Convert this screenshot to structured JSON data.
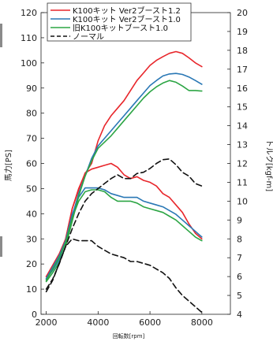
{
  "chart_data": {
    "type": "line",
    "xlabel": "回転数[rpm]",
    "ylabel_left": "馬力[PS]",
    "ylabel_right": "トルク[kgf-m]",
    "xlim": [
      1800,
      9100
    ],
    "ylim_left": [
      0,
      120
    ],
    "ylim_right": [
      4,
      20
    ],
    "x_ticks": [
      2000,
      4000,
      6000,
      8000
    ],
    "y_ticks_left": [
      0,
      10,
      20,
      30,
      40,
      50,
      60,
      70,
      80,
      90,
      100,
      110,
      120
    ],
    "y_ticks_right": [
      4,
      5,
      6,
      7,
      8,
      9,
      10,
      11,
      12,
      13,
      14,
      15,
      16,
      17,
      18,
      19,
      20
    ],
    "grid": false,
    "legend_position": "top-left",
    "series": [
      {
        "name": "K100キット Ver2ブースト1.2",
        "color": "#e8262b",
        "dash": "solid",
        "power_ps": {
          "x": [
            2000,
            2250,
            2500,
            2750,
            3000,
            3250,
            3500,
            3750,
            4000,
            4250,
            4500,
            4750,
            5000,
            5250,
            5500,
            5750,
            6000,
            6250,
            6500,
            6750,
            7000,
            7250,
            7500,
            7750,
            8000
          ],
          "y": [
            15,
            18.5,
            22.5,
            30,
            42,
            50,
            56,
            60,
            69,
            75,
            79,
            82,
            85,
            89,
            93,
            96,
            99,
            101,
            102.5,
            103.8,
            104.5,
            103.8,
            102,
            100,
            98.5
          ]
        },
        "torque_kgfm": {
          "x": [
            2000,
            2250,
            2500,
            2750,
            3000,
            3250,
            3500,
            3750,
            4000,
            4250,
            4500,
            4750,
            5000,
            5250,
            5500,
            5750,
            6000,
            6250,
            6500,
            6750,
            7000,
            7250,
            7500,
            7750,
            8000
          ],
          "y": [
            6.0,
            6.6,
            7.2,
            8.0,
            9.6,
            10.6,
            11.5,
            11.7,
            11.8,
            11.9,
            12.0,
            11.8,
            11.4,
            11.2,
            11.3,
            11.1,
            11.0,
            10.8,
            10.4,
            10.2,
            9.8,
            9.4,
            8.8,
            8.3,
            8.0
          ]
        }
      },
      {
        "name": "K100キット Ver2ブースト1.0",
        "color": "#2a78b5",
        "dash": "solid",
        "power_ps": {
          "x": [
            2000,
            2250,
            2500,
            2750,
            3000,
            3250,
            3500,
            3750,
            4000,
            4250,
            4500,
            4750,
            5000,
            5250,
            5500,
            5750,
            6000,
            6250,
            6500,
            6750,
            7000,
            7250,
            7500,
            7750,
            8000
          ],
          "y": [
            14,
            17.5,
            21.5,
            29,
            39,
            48,
            55,
            62,
            67,
            70,
            73,
            76,
            79,
            82,
            85,
            88,
            91,
            93,
            94.8,
            95.6,
            95.8,
            95.4,
            94.4,
            93,
            91.5
          ]
        },
        "torque_kgfm": {
          "x": [
            2000,
            2250,
            2500,
            2750,
            3000,
            3250,
            3500,
            3750,
            4000,
            4250,
            4500,
            4750,
            5000,
            5250,
            5500,
            5750,
            6000,
            6250,
            6500,
            6750,
            7000,
            7250,
            7500,
            7750,
            8000
          ],
          "y": [
            5.9,
            6.5,
            7.1,
            7.9,
            9.3,
            10.2,
            10.7,
            10.7,
            10.7,
            10.6,
            10.4,
            10.3,
            10.2,
            10.2,
            10.2,
            10.0,
            9.9,
            9.8,
            9.7,
            9.5,
            9.3,
            9.0,
            8.7,
            8.4,
            8.1
          ]
        }
      },
      {
        "name": "旧K100キットブースト1.0",
        "color": "#2ca544",
        "dash": "solid",
        "power_ps": {
          "x": [
            2000,
            2250,
            2500,
            2750,
            3000,
            3250,
            3500,
            3750,
            4000,
            4250,
            4500,
            4750,
            5000,
            5250,
            5500,
            5750,
            6000,
            6250,
            6500,
            6750,
            7000,
            7250,
            7500,
            7750,
            8000
          ],
          "y": [
            13,
            16.5,
            20.5,
            27,
            37,
            47,
            55,
            61,
            66,
            68.5,
            71,
            74,
            77,
            80,
            83,
            86,
            88.5,
            90.5,
            92,
            93,
            92.3,
            90.8,
            89,
            89,
            88.8
          ]
        },
        "torque_kgfm": {
          "x": [
            2000,
            2250,
            2500,
            2750,
            3000,
            3250,
            3500,
            3750,
            4000,
            4250,
            4500,
            4750,
            5000,
            5250,
            5500,
            5750,
            6000,
            6250,
            6500,
            6750,
            7000,
            7250,
            7500,
            7750,
            8000
          ],
          "y": [
            5.8,
            6.4,
            7.0,
            7.8,
            9.1,
            10.0,
            10.5,
            10.6,
            10.6,
            10.5,
            10.2,
            10.0,
            10.0,
            10.0,
            9.9,
            9.7,
            9.6,
            9.5,
            9.4,
            9.2,
            9.0,
            8.7,
            8.4,
            8.1,
            7.9
          ]
        }
      },
      {
        "name": "ノーマル",
        "color": "#111111",
        "dash": "dashed",
        "power_ps": {
          "x": [
            2000,
            2250,
            2500,
            2750,
            3000,
            3250,
            3500,
            3750,
            4000,
            4250,
            4500,
            4750,
            5000,
            5250,
            5500,
            5750,
            6000,
            6250,
            6500,
            6750,
            7000,
            7250,
            7500,
            7750,
            8000
          ],
          "y": [
            10,
            14,
            20,
            27,
            34,
            40,
            45,
            48,
            50,
            52,
            54,
            55.5,
            54,
            54,
            56,
            56.5,
            58,
            60,
            61.5,
            61.8,
            59.5,
            56.5,
            55,
            52,
            51
          ]
        },
        "torque_kgfm": {
          "x": [
            2000,
            2250,
            2500,
            2750,
            3000,
            3250,
            3500,
            3750,
            4000,
            4250,
            4500,
            4750,
            5000,
            5250,
            5500,
            5750,
            6000,
            6250,
            6500,
            6750,
            7000,
            7250,
            7500,
            7750,
            8000
          ],
          "y": [
            5.2,
            5.8,
            6.7,
            7.6,
            8.0,
            7.9,
            7.9,
            7.9,
            7.6,
            7.4,
            7.2,
            7.1,
            7.0,
            6.8,
            6.8,
            6.7,
            6.6,
            6.4,
            6.2,
            5.9,
            5.4,
            5.0,
            4.7,
            4.4,
            4.1
          ]
        }
      }
    ]
  }
}
